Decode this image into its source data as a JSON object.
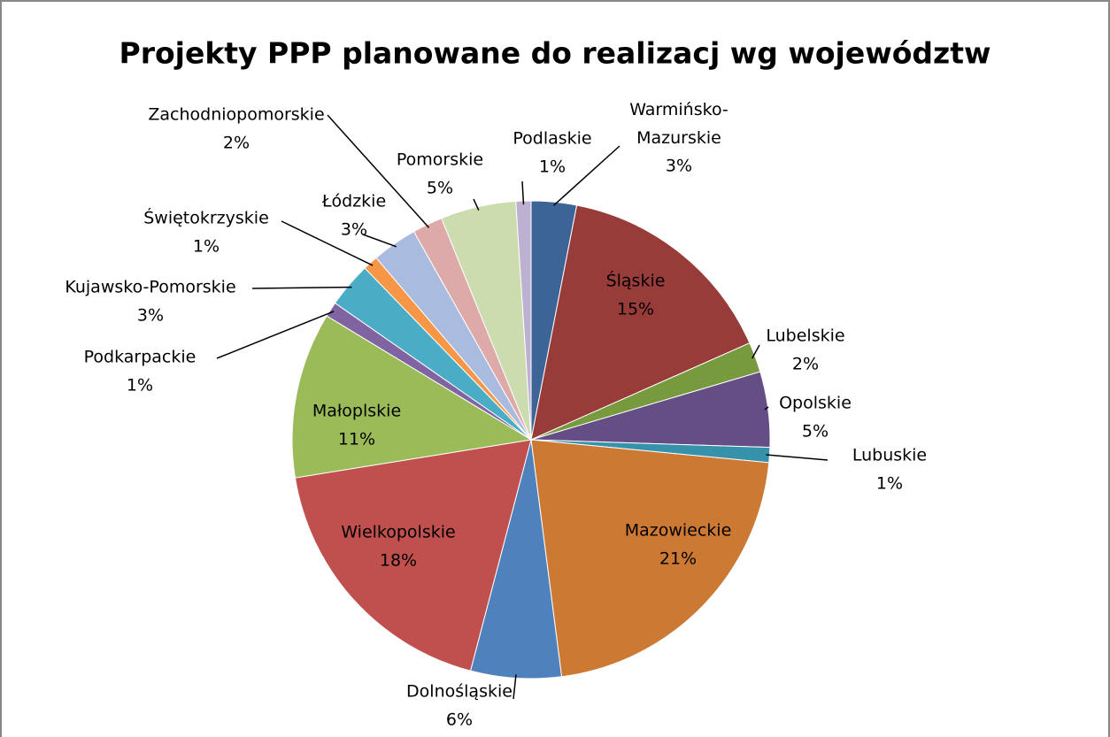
{
  "chart_data": {
    "type": "pie",
    "title": "Projekty PPP planowane do realizacj wg województw",
    "categories": [
      "Warmińsko-Mazurskie",
      "Śląskie",
      "Lubelskie",
      "Opolskie",
      "Lubuskie",
      "Mazowieckie",
      "Dolnośląskie",
      "Wielkopolskie",
      "Małoplskie",
      "Podkarpackie",
      "Kujawsko-Pomorskie",
      "Świętokrzyskie",
      "Łódzkie",
      "Zachodniopomorskie",
      "Pomorskie",
      "Podlaskie"
    ],
    "values": [
      3,
      15,
      2,
      5,
      1,
      21,
      6,
      18,
      11,
      1,
      3,
      1,
      3,
      2,
      5,
      1
    ],
    "value_labels": [
      "3%",
      "15%",
      "2%",
      "5%",
      "1%",
      "21%",
      "6%",
      "18%",
      "11%",
      "1%",
      "3%",
      "1%",
      "3%",
      "2%",
      "5%",
      "1%"
    ],
    "colors": [
      "#3c6496",
      "#983c3a",
      "#789a3f",
      "#654d86",
      "#3691aa",
      "#cc7934",
      "#4f81bd",
      "#c0504d",
      "#9bbb59",
      "#8064a2",
      "#4bacc6",
      "#f79646",
      "#a9bbde",
      "#deaaa9",
      "#cbdcae",
      "#bdb0d0"
    ]
  }
}
